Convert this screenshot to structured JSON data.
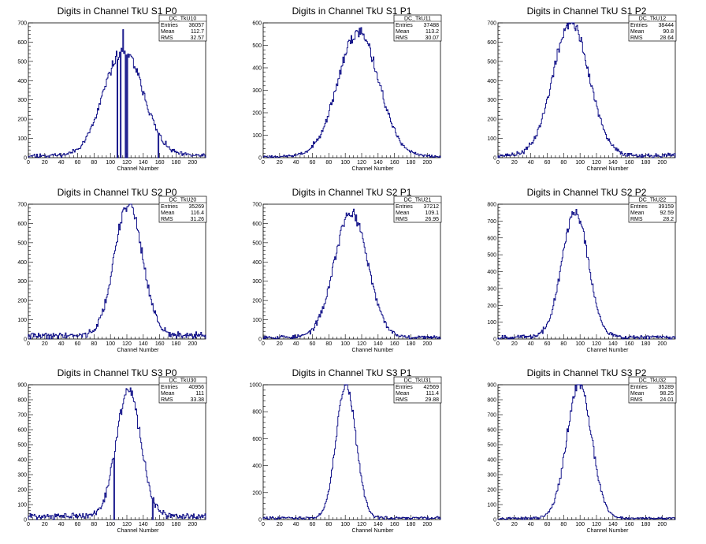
{
  "x_axis_label": "Channel Number",
  "stat_labels": {
    "entries": "Entries",
    "mean": "Mean",
    "rms": "RMS"
  },
  "chart_data": [
    {
      "type": "histogram",
      "title": "Digits in Channel TkU S1 P0",
      "stat_name": "DC_TkU10",
      "entries": "36057",
      "mean": "112.7",
      "rms": "32.57",
      "xlabel": "Channel Number",
      "xlim": [
        0,
        216
      ],
      "ylim": [
        0,
        700
      ],
      "yticks": [
        0,
        100,
        200,
        300,
        400,
        500,
        600,
        700
      ],
      "xticks": [
        0,
        20,
        40,
        60,
        80,
        100,
        120,
        140,
        160,
        180,
        200
      ],
      "mu": 116,
      "sigma": 24,
      "peak": 545,
      "noise": 14,
      "noise_amp": 12,
      "seed": 11,
      "spikes": [
        [
          108,
          0
        ],
        [
          112,
          0
        ],
        [
          115,
          665
        ],
        [
          118,
          0
        ],
        [
          120,
          0
        ],
        [
          158,
          0
        ]
      ],
      "line_color": "#000080"
    },
    {
      "type": "histogram",
      "title": "Digits in Channel TkU S1 P1",
      "stat_name": "DC_TkU11",
      "entries": "37488",
      "mean": "113.2",
      "rms": "30.07",
      "xlabel": "Channel Number",
      "xlim": [
        0,
        216
      ],
      "ylim": [
        0,
        600
      ],
      "yticks": [
        0,
        100,
        200,
        300,
        400,
        500,
        600
      ],
      "xticks": [
        0,
        20,
        40,
        60,
        80,
        100,
        120,
        140,
        160,
        180,
        200
      ],
      "mu": 116,
      "sigma": 25,
      "peak": 555,
      "noise": 7,
      "noise_amp": 8,
      "seed": 23,
      "spikes": [],
      "line_color": "#000080"
    },
    {
      "type": "histogram",
      "title": "Digits in Channel TkU S1 P2",
      "stat_name": "DC_TkU12",
      "entries": "38444",
      "mean": "90.8",
      "rms": "28.64",
      "xlabel": "Channel Number",
      "xlim": [
        0,
        216
      ],
      "ylim": [
        0,
        700
      ],
      "yticks": [
        0,
        100,
        200,
        300,
        400,
        500,
        600,
        700
      ],
      "xticks": [
        0,
        20,
        40,
        60,
        80,
        100,
        120,
        140,
        160,
        180,
        200
      ],
      "mu": 89,
      "sigma": 22,
      "peak": 690,
      "noise": 14,
      "noise_amp": 14,
      "seed": 37,
      "spikes": [],
      "line_color": "#000080"
    },
    {
      "type": "histogram",
      "title": "Digits in Channel TkU S2 P0",
      "stat_name": "DC_TkU20",
      "entries": "35269",
      "mean": "116.4",
      "rms": "31.26",
      "xlabel": "Channel Number",
      "xlim": [
        0,
        216
      ],
      "ylim": [
        0,
        700
      ],
      "yticks": [
        0,
        100,
        200,
        300,
        400,
        500,
        600,
        700
      ],
      "xticks": [
        0,
        20,
        40,
        60,
        80,
        100,
        120,
        140,
        160,
        180,
        200
      ],
      "mu": 122,
      "sigma": 17,
      "peak": 690,
      "noise": 22,
      "noise_amp": 20,
      "seed": 41,
      "spikes": [],
      "line_color": "#000080"
    },
    {
      "type": "histogram",
      "title": "Digits in Channel TkU S2 P1",
      "stat_name": "DC_TkU21",
      "entries": "37212",
      "mean": "109.1",
      "rms": "26.95",
      "xlabel": "Channel Number",
      "xlim": [
        0,
        216
      ],
      "ylim": [
        0,
        700
      ],
      "yticks": [
        0,
        100,
        200,
        300,
        400,
        500,
        600,
        700
      ],
      "xticks": [
        0,
        20,
        40,
        60,
        80,
        100,
        120,
        140,
        160,
        180,
        200
      ],
      "mu": 107,
      "sigma": 20,
      "peak": 650,
      "noise": 12,
      "noise_amp": 12,
      "seed": 53,
      "spikes": [],
      "line_color": "#000080"
    },
    {
      "type": "histogram",
      "title": "Digits in Channel TkU S2 P2",
      "stat_name": "DC_TkU22",
      "entries": "39159",
      "mean": "92.59",
      "rms": "28.2",
      "xlabel": "Channel Number",
      "xlim": [
        0,
        216
      ],
      "ylim": [
        0,
        800
      ],
      "yticks": [
        0,
        100,
        200,
        300,
        400,
        500,
        600,
        700,
        800
      ],
      "xticks": [
        0,
        20,
        40,
        60,
        80,
        100,
        120,
        140,
        160,
        180,
        200
      ],
      "mu": 94,
      "sigma": 16,
      "peak": 745,
      "noise": 14,
      "noise_amp": 14,
      "seed": 67,
      "spikes": [],
      "line_color": "#000080"
    },
    {
      "type": "histogram",
      "title": "Digits in Channel TkU S3 P0",
      "stat_name": "DC_TkU30",
      "entries": "40956",
      "mean": "111",
      "rms": "33.38",
      "xlabel": "Channel Number",
      "xlim": [
        0,
        216
      ],
      "ylim": [
        0,
        900
      ],
      "yticks": [
        0,
        100,
        200,
        300,
        400,
        500,
        600,
        700,
        800,
        900
      ],
      "xticks": [
        0,
        20,
        40,
        60,
        80,
        100,
        120,
        140,
        160,
        180,
        200
      ],
      "mu": 122,
      "sigma": 15,
      "peak": 840,
      "noise": 28,
      "noise_amp": 26,
      "seed": 71,
      "spikes": [
        [
          104,
          0
        ],
        [
          151,
          0
        ]
      ],
      "line_color": "#000080"
    },
    {
      "type": "histogram",
      "title": "Digits in Channel TkU S3 P1",
      "stat_name": "DC_TkU31",
      "entries": "42569",
      "mean": "111.4",
      "rms": "29.88",
      "xlabel": "Channel Number",
      "xlim": [
        0,
        216
      ],
      "ylim": [
        0,
        1000
      ],
      "yticks": [
        0,
        200,
        400,
        600,
        800,
        1000
      ],
      "xticks": [
        0,
        20,
        40,
        60,
        80,
        100,
        120,
        140,
        160,
        180,
        200
      ],
      "mu": 101,
      "sigma": 12,
      "peak": 1000,
      "noise": 14,
      "noise_amp": 14,
      "seed": 83,
      "spikes": [],
      "line_color": "#000080"
    },
    {
      "type": "histogram",
      "title": "Digits in Channel TkU S3 P2",
      "stat_name": "DC_TkU32",
      "entries": "35289",
      "mean": "98.25",
      "rms": "24.01",
      "xlabel": "Channel Number",
      "xlim": [
        0,
        216
      ],
      "ylim": [
        0,
        900
      ],
      "yticks": [
        0,
        100,
        200,
        300,
        400,
        500,
        600,
        700,
        800,
        900
      ],
      "xticks": [
        0,
        20,
        40,
        60,
        80,
        100,
        120,
        140,
        160,
        180,
        200
      ],
      "mu": 99,
      "sigma": 15,
      "peak": 900,
      "noise": 10,
      "noise_amp": 10,
      "seed": 97,
      "spikes": [],
      "line_color": "#000080"
    }
  ]
}
